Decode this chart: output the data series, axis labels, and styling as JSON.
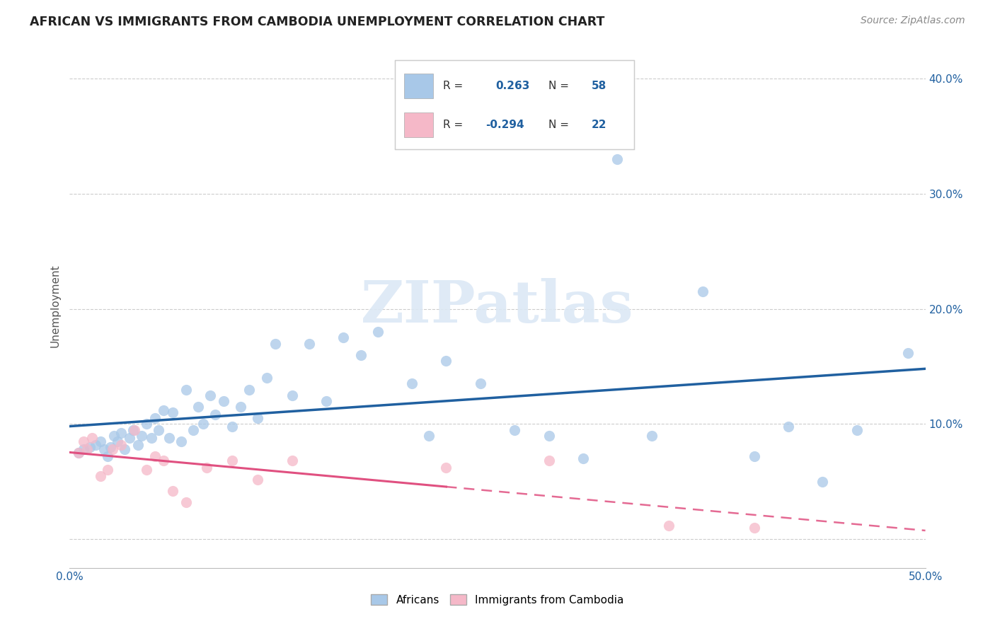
{
  "title": "AFRICAN VS IMMIGRANTS FROM CAMBODIA UNEMPLOYMENT CORRELATION CHART",
  "source": "Source: ZipAtlas.com",
  "ylabel": "Unemployment",
  "yticks": [
    0.0,
    0.1,
    0.2,
    0.3,
    0.4
  ],
  "ytick_labels": [
    "",
    "10.0%",
    "20.0%",
    "30.0%",
    "40.0%"
  ],
  "xlim": [
    0.0,
    0.5
  ],
  "ylim": [
    -0.025,
    0.43
  ],
  "africans_R": "0.263",
  "africans_N": "58",
  "cambodia_R": "-0.294",
  "cambodia_N": "22",
  "blue_color": "#a8c8e8",
  "pink_color": "#f5b8c8",
  "blue_line_color": "#2060a0",
  "pink_line_color": "#e05080",
  "blue_text_color": "#2060a0",
  "watermark_color": "#dce8f5",
  "watermark": "ZIPatlas",
  "africans_x": [
    0.005,
    0.008,
    0.012,
    0.015,
    0.018,
    0.02,
    0.022,
    0.024,
    0.026,
    0.028,
    0.03,
    0.032,
    0.035,
    0.037,
    0.04,
    0.042,
    0.045,
    0.048,
    0.05,
    0.052,
    0.055,
    0.058,
    0.06,
    0.065,
    0.068,
    0.072,
    0.075,
    0.078,
    0.082,
    0.085,
    0.09,
    0.095,
    0.1,
    0.105,
    0.11,
    0.115,
    0.12,
    0.13,
    0.14,
    0.15,
    0.16,
    0.17,
    0.18,
    0.2,
    0.21,
    0.22,
    0.24,
    0.26,
    0.28,
    0.3,
    0.32,
    0.34,
    0.37,
    0.4,
    0.42,
    0.44,
    0.46,
    0.49
  ],
  "africans_y": [
    0.075,
    0.078,
    0.08,
    0.082,
    0.085,
    0.078,
    0.072,
    0.08,
    0.09,
    0.085,
    0.092,
    0.078,
    0.088,
    0.095,
    0.082,
    0.09,
    0.1,
    0.088,
    0.105,
    0.095,
    0.112,
    0.088,
    0.11,
    0.085,
    0.13,
    0.095,
    0.115,
    0.1,
    0.125,
    0.108,
    0.12,
    0.098,
    0.115,
    0.13,
    0.105,
    0.14,
    0.17,
    0.125,
    0.17,
    0.12,
    0.175,
    0.16,
    0.18,
    0.135,
    0.09,
    0.155,
    0.135,
    0.095,
    0.09,
    0.07,
    0.33,
    0.09,
    0.215,
    0.072,
    0.098,
    0.05,
    0.095,
    0.162
  ],
  "cambodia_x": [
    0.005,
    0.008,
    0.01,
    0.013,
    0.018,
    0.022,
    0.025,
    0.03,
    0.038,
    0.045,
    0.05,
    0.055,
    0.06,
    0.068,
    0.08,
    0.095,
    0.11,
    0.13,
    0.22,
    0.28,
    0.35,
    0.4
  ],
  "cambodia_y": [
    0.075,
    0.085,
    0.078,
    0.088,
    0.055,
    0.06,
    0.078,
    0.082,
    0.095,
    0.06,
    0.072,
    0.068,
    0.042,
    0.032,
    0.062,
    0.068,
    0.052,
    0.068,
    0.062,
    0.068,
    0.012,
    0.01
  ],
  "dot_size": 120
}
